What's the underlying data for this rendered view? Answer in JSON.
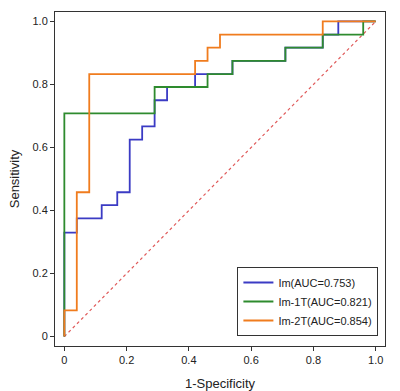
{
  "chart_data": {
    "type": "line",
    "x_label": "1-Specificity",
    "y_label": "Sensitivity",
    "xlim": [
      -0.03,
      1.03
    ],
    "ylim": [
      -0.03,
      1.03
    ],
    "xticks": [
      0,
      0.2,
      0.4,
      0.6,
      0.8,
      {
        "value": 1,
        "label": "1.0"
      }
    ],
    "yticks": [
      0,
      0.2,
      0.4,
      0.6,
      0.8,
      {
        "value": 1,
        "label": "1.0"
      }
    ],
    "grid": false,
    "legend": "lower right",
    "series": [
      {
        "color": "#e05a5a",
        "line_style": "dotted",
        "x": [
          0,
          1
        ],
        "y": [
          0,
          1
        ]
      },
      {
        "name": "Im(AUC=0.753)",
        "color": "#3b3bc4",
        "line_style": "solid",
        "x": [
          0,
          0,
          0.04,
          0.04,
          0.12,
          0.12,
          0.17,
          0.17,
          0.21,
          0.21,
          0.25,
          0.25,
          0.29,
          0.29,
          0.33,
          0.33,
          0.42,
          0.42,
          0.54,
          0.54,
          0.71,
          0.71,
          0.83,
          0.83,
          0.88,
          0.88,
          1
        ],
        "y": [
          0,
          0.33,
          0.33,
          0.375,
          0.375,
          0.417,
          0.417,
          0.458,
          0.458,
          0.625,
          0.625,
          0.667,
          0.667,
          0.75,
          0.75,
          0.792,
          0.792,
          0.833,
          0.833,
          0.875,
          0.875,
          0.917,
          0.917,
          0.958,
          0.958,
          1,
          1
        ]
      },
      {
        "name": "Im-1T(AUC=0.821)",
        "color": "#2e8b2e",
        "line_style": "solid",
        "x": [
          0,
          0,
          0.29,
          0.29,
          0.46,
          0.46,
          0.54,
          0.54,
          0.71,
          0.71,
          0.83,
          0.83,
          0.96,
          0.96,
          1
        ],
        "y": [
          0,
          0.708,
          0.708,
          0.792,
          0.792,
          0.833,
          0.833,
          0.875,
          0.875,
          0.917,
          0.917,
          0.958,
          0.958,
          1,
          1
        ]
      },
      {
        "name": "Im-2T(AUC=0.854)",
        "color": "#f07c1e",
        "line_style": "solid",
        "x": [
          0,
          0,
          0.04,
          0.04,
          0.08,
          0.08,
          0.42,
          0.42,
          0.46,
          0.46,
          0.5,
          0.5,
          0.83,
          0.83,
          1
        ],
        "y": [
          0,
          0.083,
          0.083,
          0.458,
          0.458,
          0.833,
          0.833,
          0.875,
          0.875,
          0.917,
          0.917,
          0.958,
          0.958,
          1,
          1
        ]
      }
    ]
  }
}
